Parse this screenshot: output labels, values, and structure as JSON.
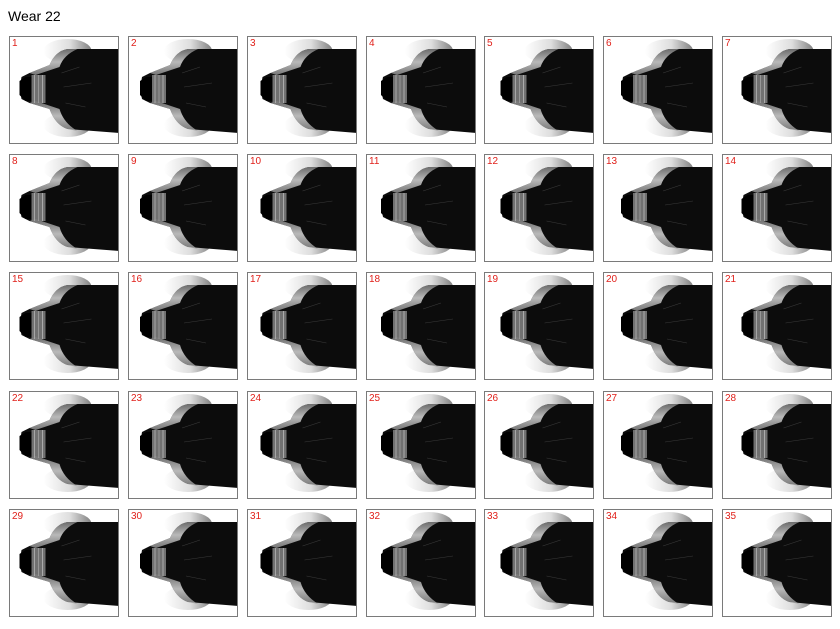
{
  "title": "Wear 22",
  "tiles": [
    "1",
    "2",
    "3",
    "4",
    "5",
    "6",
    "7",
    "8",
    "9",
    "10",
    "11",
    "12",
    "13",
    "14",
    "15",
    "16",
    "17",
    "18",
    "19",
    "20",
    "21",
    "22",
    "23",
    "24",
    "25",
    "26",
    "27",
    "28",
    "29",
    "30",
    "31",
    "32",
    "33",
    "34",
    "35"
  ],
  "label_color": "#e0201a"
}
